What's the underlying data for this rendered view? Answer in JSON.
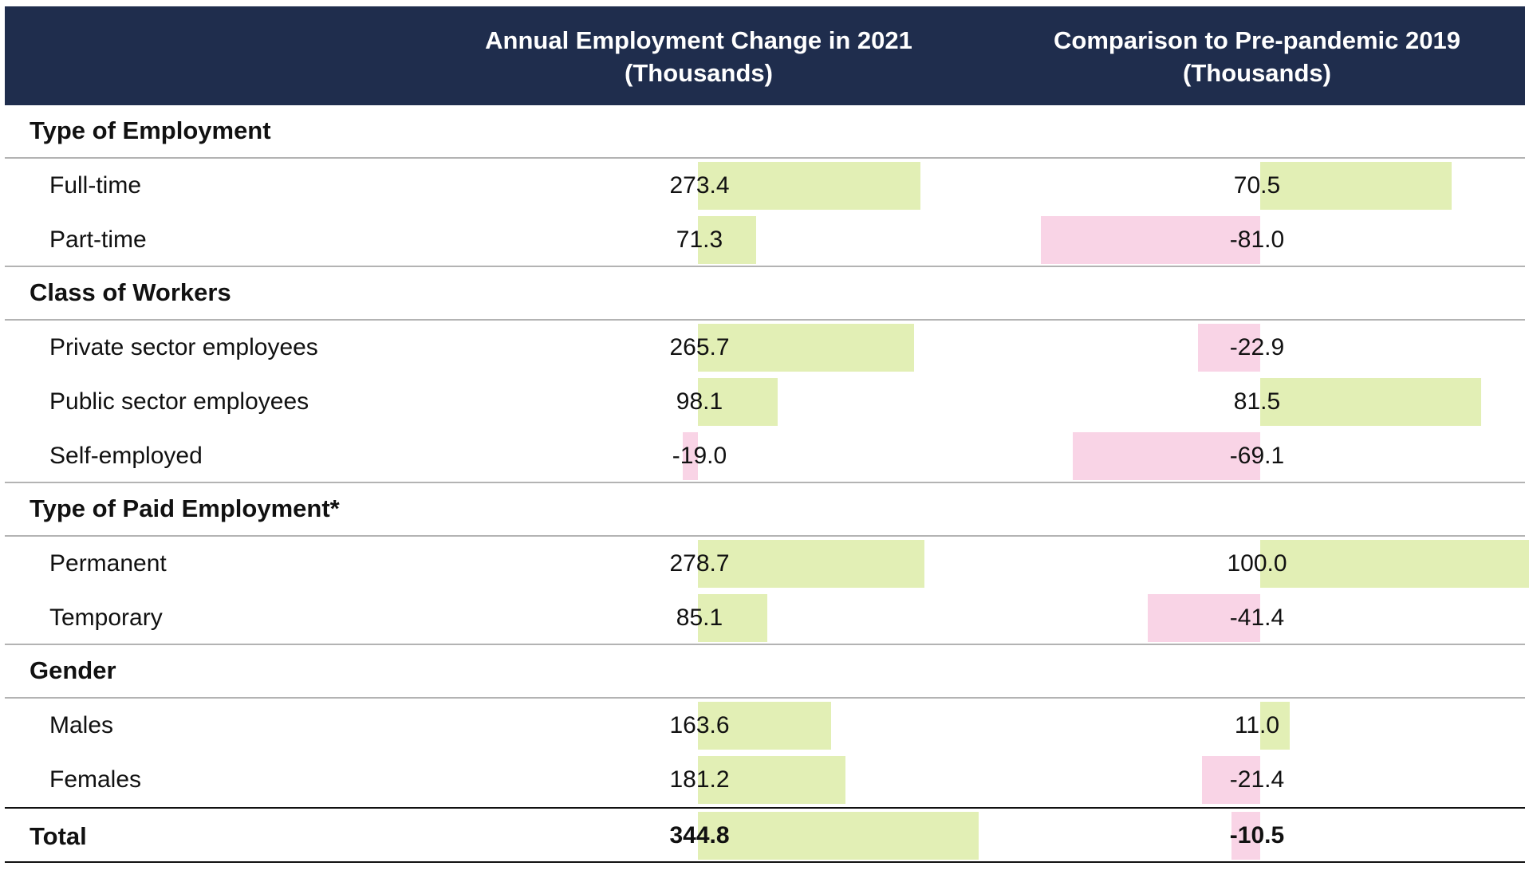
{
  "header": {
    "col1": "Annual Employment Change in 2021\n(Thousands)",
    "col2": "Comparison to Pre-pandemic 2019\n(Thousands)"
  },
  "colors": {
    "header_bg": "#1f2d4d",
    "positive": "#e2efb5",
    "negative": "#f9d4e6"
  },
  "chart_data": {
    "type": "table",
    "columns": [
      "Annual Employment Change in 2021 (Thousands)",
      "Comparison to Pre-pandemic 2019 (Thousands)"
    ],
    "sections": [
      {
        "title": "Type of Employment",
        "rows": [
          {
            "label": "Full-time",
            "values": [
              273.4,
              70.5
            ],
            "display": [
              "273.4",
              "70.5"
            ]
          },
          {
            "label": "Part-time",
            "values": [
              71.3,
              -81.0
            ],
            "display": [
              "71.3",
              "-81.0"
            ]
          }
        ]
      },
      {
        "title": "Class of Workers",
        "rows": [
          {
            "label": "Private sector employees",
            "values": [
              265.7,
              -22.9
            ],
            "display": [
              "265.7",
              "-22.9"
            ]
          },
          {
            "label": "Public sector employees",
            "values": [
              98.1,
              81.5
            ],
            "display": [
              "98.1",
              "81.5"
            ]
          },
          {
            "label": "Self-employed",
            "values": [
              -19.0,
              -69.1
            ],
            "display": [
              "-19.0",
              "-69.1"
            ]
          }
        ]
      },
      {
        "title": "Type of Paid Employment*",
        "rows": [
          {
            "label": "Permanent",
            "values": [
              278.7,
              100.0
            ],
            "display": [
              "278.7",
              "100.0"
            ]
          },
          {
            "label": "Temporary",
            "values": [
              85.1,
              -41.4
            ],
            "display": [
              "85.1",
              "-41.4"
            ]
          }
        ]
      },
      {
        "title": "Gender",
        "rows": [
          {
            "label": "Males",
            "values": [
              163.6,
              11.0
            ],
            "display": [
              "163.6",
              "11.0"
            ]
          },
          {
            "label": "Females",
            "values": [
              181.2,
              -21.4
            ],
            "display": [
              "181.2",
              "-21.4"
            ]
          }
        ]
      }
    ],
    "total": {
      "label": "Total",
      "values": [
        344.8,
        -10.5
      ],
      "display": [
        "344.8",
        "-10.5"
      ]
    }
  }
}
